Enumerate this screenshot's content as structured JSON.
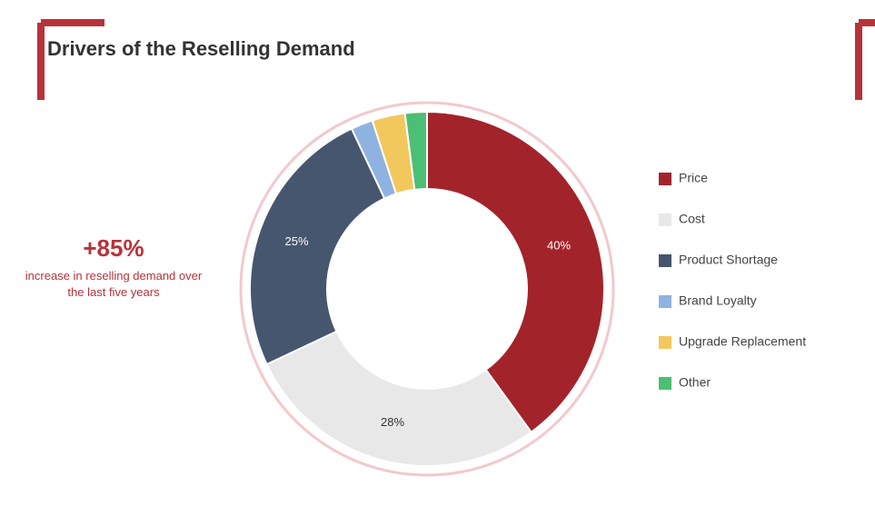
{
  "chart_data": {
    "type": "donut",
    "title": "Drivers of the Reselling Demand",
    "callout": {
      "value": "+85%",
      "text": "increase in reselling demand over the last five years"
    },
    "categories": [
      "Price",
      "Cost",
      "Product Shortage",
      "Brand Loyalty",
      "Upgrade Replacement",
      "Other"
    ],
    "values": [
      40,
      28,
      25,
      2,
      3,
      2
    ],
    "value_labels": [
      "40%",
      "28%",
      "25%",
      null,
      null,
      null
    ],
    "colors": [
      "#a3232b",
      "#e8e8e8",
      "#46566f",
      "#8fb3e0",
      "#f2c75c",
      "#4cbf75"
    ],
    "legend": "right"
  }
}
